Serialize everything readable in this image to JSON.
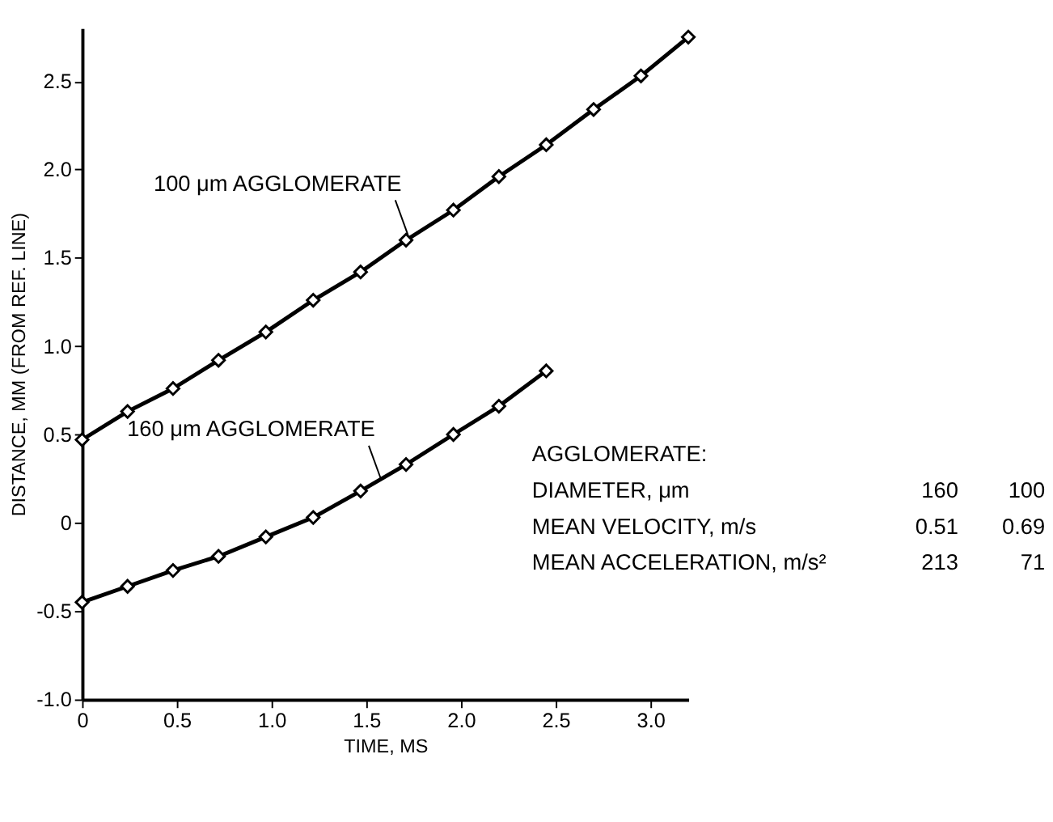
{
  "chart_data": {
    "type": "line",
    "xlabel": "TIME, MS",
    "ylabel": "DISTANCE, MM (FROM REF. LINE)",
    "xlim": [
      0,
      3.2
    ],
    "ylim": [
      -1.0,
      2.8
    ],
    "xticks": [
      0,
      0.5,
      {
        "value": 1.0,
        "label": "1.0"
      },
      1.5,
      {
        "value": 2.0,
        "label": "2.0"
      },
      2.5,
      {
        "value": 3.0,
        "label": "3.0"
      }
    ],
    "yticks": [
      {
        "value": -1.0,
        "label": "-1.0"
      },
      -0.5,
      0,
      0.5,
      {
        "value": 1.0,
        "label": "1.0"
      },
      1.5,
      {
        "value": 2.0,
        "label": "2.0"
      },
      2.5
    ],
    "marker": "diamond",
    "line_style": "solid",
    "grid": false,
    "series": [
      {
        "color": "#000000",
        "x": [
          0,
          0.24,
          0.48,
          0.72,
          0.97,
          1.22,
          1.47,
          1.71,
          1.96,
          2.2,
          2.45,
          2.7,
          2.95,
          3.2
        ],
        "values": [
          0.47,
          0.63,
          0.76,
          0.92,
          1.08,
          1.26,
          1.42,
          1.6,
          1.77,
          1.96,
          2.14,
          2.34,
          2.53,
          2.75
        ]
      },
      {
        "color": "#000000",
        "x": [
          0,
          0.24,
          0.48,
          0.72,
          0.97,
          1.22,
          1.47,
          1.71,
          1.96,
          2.2,
          2.45
        ],
        "values": [
          -0.45,
          -0.36,
          -0.27,
          -0.19,
          -0.08,
          0.03,
          0.18,
          0.33,
          0.5,
          0.66,
          0.86
        ]
      }
    ],
    "annotations": [
      {
        "text": "100 μm AGGLOMERATE",
        "x": 1.72,
        "y": 1.63
      },
      {
        "text": "160 μm AGGLOMERATE",
        "x": 1.58,
        "y": 0.24
      },
      "AGGLOMERATE:",
      "DIAMETER, μm",
      "160",
      "100",
      "MEAN VELOCITY, m/s",
      "0.51",
      "0.69",
      "MEAN ACCELERATION, m/s²",
      "213",
      "71"
    ]
  }
}
